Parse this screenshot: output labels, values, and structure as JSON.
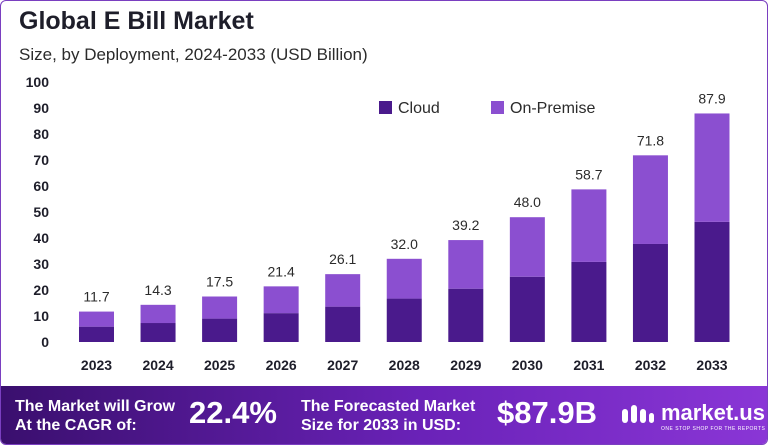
{
  "header": {
    "title": "Global E Bill Market",
    "subtitle": "Size, by Deployment, 2024-2033 (USD Billion)"
  },
  "chart_data": {
    "type": "bar",
    "stacked": true,
    "categories": [
      "2023",
      "2024",
      "2025",
      "2026",
      "2027",
      "2028",
      "2029",
      "2030",
      "2031",
      "2032",
      "2033"
    ],
    "series": [
      {
        "name": "Cloud",
        "color": "#4a1a8c",
        "values": [
          5.9,
          7.3,
          9.0,
          11.1,
          13.6,
          16.7,
          20.5,
          25.1,
          30.8,
          37.7,
          46.2
        ]
      },
      {
        "name": "On-Premise",
        "color": "#8b4fd0",
        "values": [
          5.8,
          7.0,
          8.5,
          10.3,
          12.5,
          15.3,
          18.7,
          22.9,
          27.9,
          34.1,
          41.7
        ]
      }
    ],
    "totals": [
      "11.7",
      "14.3",
      "17.5",
      "21.4",
      "26.1",
      "32.0",
      "39.2",
      "48.0",
      "58.7",
      "71.8",
      "87.9"
    ],
    "ylim": [
      0,
      100
    ],
    "yticks": [
      0,
      10,
      20,
      30,
      40,
      50,
      60,
      70,
      80,
      90,
      100
    ],
    "legend_position": "top-center",
    "grid": false
  },
  "footer": {
    "cagr_label_line1": "The Market will Grow",
    "cagr_label_line2": "At the CAGR of:",
    "cagr_value": "22.4%",
    "forecast_label_line1": "The Forecasted Market",
    "forecast_label_line2": "Size for 2033 in USD:",
    "forecast_value": "$87.9B",
    "brand_name": "market.us",
    "brand_tagline": "ONE STOP SHOP FOR THE REPORTS"
  }
}
